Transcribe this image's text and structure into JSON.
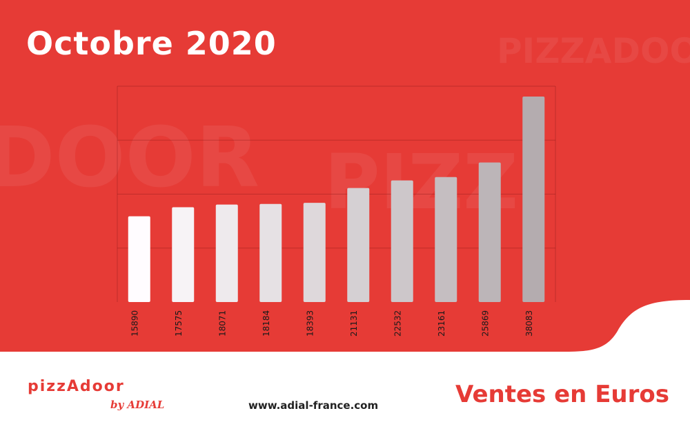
{
  "header": {
    "title": "Octobre 2020"
  },
  "footer": {
    "website": "www.adial-france.com",
    "subtitle": "Ventes en Euros"
  },
  "logo": {
    "main": "pizzAdoor",
    "sub": "by ADIAL"
  },
  "colors": {
    "brand_red": "#e63b36",
    "white": "#ffffff",
    "text_dark": "#222222"
  },
  "chart_data": {
    "type": "bar",
    "title": "",
    "xlabel": "",
    "ylabel": "",
    "ylim": [
      0,
      40000
    ],
    "grid": true,
    "values": [
      15890,
      17575,
      18071,
      18184,
      18393,
      21131,
      22532,
      23161,
      25869,
      38083
    ],
    "labels": [
      "15890",
      "17575",
      "18071",
      "18184",
      "18393",
      "21131",
      "22532",
      "23161",
      "25869",
      "38083"
    ]
  }
}
